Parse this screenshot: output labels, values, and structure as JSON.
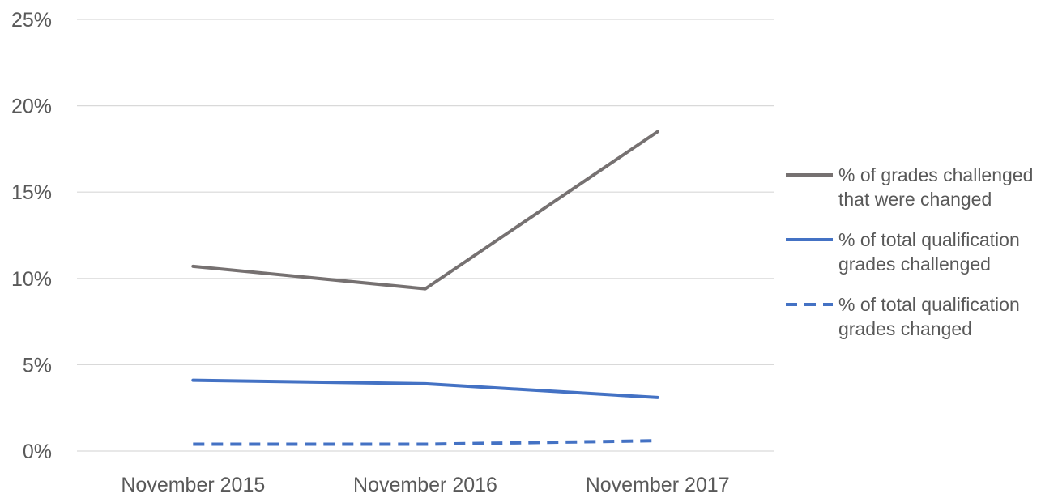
{
  "chart_data": {
    "type": "line",
    "categories": [
      "November 2015",
      "November 2016",
      "November 2017"
    ],
    "y_tick_labels": [
      "0%",
      "5%",
      "10%",
      "15%",
      "20%",
      "25%"
    ],
    "ylim": [
      0,
      25
    ],
    "y_unit": "%",
    "grid": true,
    "legend_position": "right",
    "series": [
      {
        "name": "% of grades challenged that were changed",
        "legend_lines": [
          "% of grades challenged",
          "that were changed"
        ],
        "values": [
          10.7,
          9.4,
          18.5
        ],
        "color": "#767171",
        "dash": false
      },
      {
        "name": "% of total qualification grades challenged",
        "legend_lines": [
          "% of total qualification",
          "grades challenged"
        ],
        "values": [
          4.1,
          3.9,
          3.1
        ],
        "color": "#4472C4",
        "dash": false
      },
      {
        "name": "% of total qualification grades changed",
        "legend_lines": [
          "% of total qualification",
          "grades changed"
        ],
        "values": [
          0.4,
          0.4,
          0.6
        ],
        "color": "#4472C4",
        "dash": true
      }
    ],
    "colors": {
      "gridline": "#d9d9d9",
      "text": "#595959"
    }
  }
}
